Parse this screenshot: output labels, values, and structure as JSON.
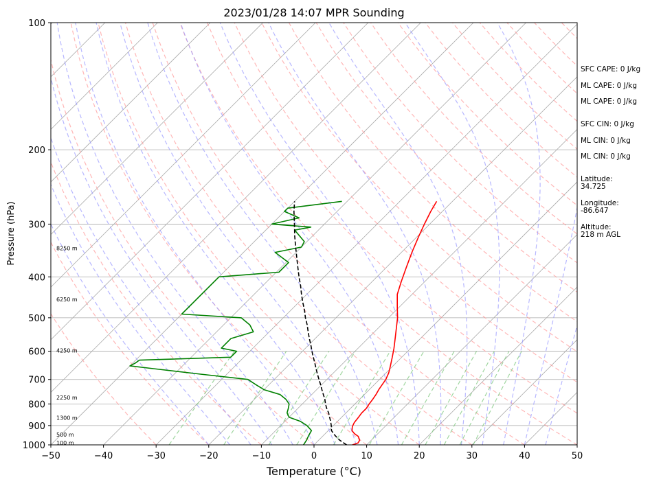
{
  "chart_data": {
    "type": "line",
    "title": "2023/01/28 14:07 MPR Sounding",
    "xlabel": "Temperature (°C)",
    "ylabel": "Pressure (hPa)",
    "xlim": [
      -50,
      50
    ],
    "ylim": [
      1000,
      100
    ],
    "yscale": "log",
    "x_ticks": [
      -50,
      -40,
      -30,
      -20,
      -10,
      0,
      10,
      20,
      30,
      40,
      50
    ],
    "y_ticks": [
      1000,
      900,
      800,
      700,
      600,
      500,
      400,
      300,
      200,
      100
    ],
    "grid": true,
    "series": [
      {
        "color": "#ff0000",
        "p": [
          1000,
          990,
          975,
          955,
          940,
          925,
          905,
          885,
          860,
          840,
          820,
          800,
          780,
          760,
          740,
          720,
          700,
          675,
          650,
          620,
          590,
          560,
          530,
          500,
          470,
          440,
          410,
          380,
          350,
          320,
          300,
          280,
          265
        ],
        "values": [
          7.3,
          8.0,
          7.8,
          6.8,
          5.5,
          4.5,
          3.8,
          3.4,
          3.2,
          3.0,
          3.0,
          2.7,
          2.5,
          2.2,
          1.8,
          1.5,
          1.2,
          0.5,
          -0.5,
          -1.8,
          -3.2,
          -4.8,
          -6.5,
          -8.3,
          -10.5,
          -12.8,
          -14.5,
          -16.2,
          -18.0,
          -19.8,
          -21.0,
          -22.2,
          -23.0
        ]
      },
      {
        "color": "#008000",
        "p": [
          1000,
          975,
          950,
          925,
          900,
          880,
          860,
          840,
          820,
          800,
          780,
          760,
          740,
          720,
          700,
          680,
          660,
          650,
          640,
          630,
          620,
          610,
          600,
          590,
          560,
          540,
          520,
          500,
          490,
          400,
          390,
          370,
          350,
          340,
          330,
          310,
          305,
          300,
          290,
          280,
          275,
          265
        ],
        "values": [
          -2.0,
          -2.3,
          -2.8,
          -3.2,
          -5.0,
          -7.0,
          -10.0,
          -11.2,
          -11.8,
          -12.5,
          -14.0,
          -16.0,
          -20.0,
          -22.5,
          -25.0,
          -35.0,
          -45.0,
          -50.0,
          -49.5,
          -49.3,
          -32.5,
          -32.5,
          -32.5,
          -36.0,
          -36.0,
          -33.0,
          -35.0,
          -38.0,
          -50.0,
          -50.0,
          -39.5,
          -39.5,
          -44.0,
          -40.0,
          -40.5,
          -44.5,
          -42.0,
          -50.0,
          -46.0,
          -50.0,
          -50.0,
          -41.0
        ]
      },
      {
        "color": "#000000",
        "p": [
          1000,
          975,
          950,
          925,
          900,
          880,
          860,
          840,
          820,
          800,
          780,
          760,
          740,
          720,
          700,
          680,
          660,
          640,
          620,
          600,
          580,
          560,
          540,
          520,
          500,
          480,
          460,
          440,
          420,
          400,
          380,
          360,
          340,
          320,
          300,
          280,
          265
        ],
        "values": [
          6.2,
          4.0,
          2.2,
          0.6,
          -0.4,
          -1.3,
          -2.3,
          -3.3,
          -4.5,
          -5.6,
          -6.6,
          -7.8,
          -9.0,
          -10.2,
          -11.5,
          -12.8,
          -14.1,
          -15.4,
          -16.8,
          -18.2,
          -19.6,
          -21.1,
          -22.6,
          -24.1,
          -25.8,
          -27.4,
          -29.2,
          -31.0,
          -32.8,
          -34.8,
          -36.8,
          -38.9,
          -41.1,
          -43.4,
          -45.7,
          -48.2,
          -50.0
        ]
      }
    ],
    "height_labels": [
      {
        "text": "100 m",
        "p": 988
      },
      {
        "text": "500 m",
        "p": 945
      },
      {
        "text": "1300 m",
        "p": 862
      },
      {
        "text": "2250 m",
        "p": 773
      },
      {
        "text": "4250 m",
        "p": 598
      },
      {
        "text": "6250 m",
        "p": 452
      },
      {
        "text": "8250 m",
        "p": 342
      }
    ],
    "annotations": [
      "SFC CAPE: 0 J/kg",
      "ML CAPE: 0 J/kg",
      "ML CAPE: 0 J/kg",
      "SFC CIN: 0 J/kg",
      "ML CIN: 0 J/kg",
      "ML CIN: 0 J/kg",
      "Latitude:",
      "34.725",
      "Longitude:",
      "-86.647",
      "Altitude:",
      "218 m AGL"
    ],
    "background_lines": {
      "isotherm_color": "#aaaaaa",
      "dry_adiabat_color": "#ff9999",
      "moist_adiabat_color": "#9999ff",
      "mixing_ratio_color": "#88cc88"
    }
  }
}
